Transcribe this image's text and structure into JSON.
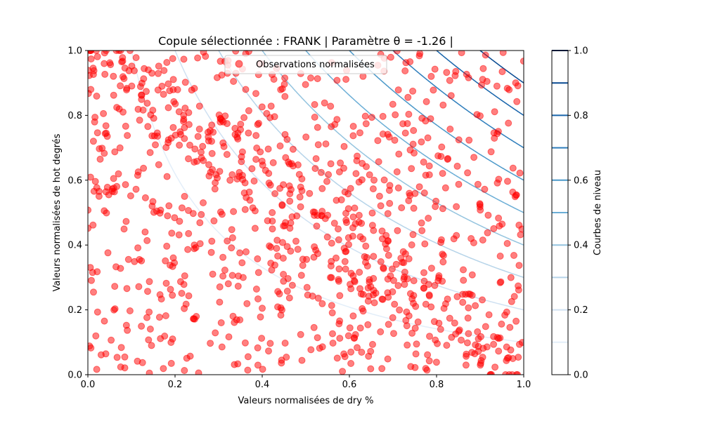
{
  "chart_data": {
    "type": "scatter",
    "title": "Copule sélectionnée : FRANK | Paramètre θ = -1.26 |",
    "xlabel": "Valeurs normalisées de dry %",
    "ylabel": "Valeurs normalisées de hot degrés",
    "xlim": [
      0,
      1
    ],
    "ylim": [
      0,
      1
    ],
    "x_ticks": [
      "0.0",
      "0.2",
      "0.4",
      "0.6",
      "0.8",
      "1.0"
    ],
    "y_ticks": [
      "0.0",
      "0.2",
      "0.4",
      "0.6",
      "0.8",
      "1.0"
    ],
    "grid": false,
    "copula": "FRANK",
    "theta": -1.26,
    "series": [
      {
        "name": "Observations normalisées",
        "color": "#ff0000",
        "n_points": 1000,
        "distribution": "uniform marginals, weak negative dependence"
      }
    ],
    "contour_levels": [
      0.1,
      0.2,
      0.3,
      0.4,
      0.5,
      0.6,
      0.7,
      0.8,
      0.9
    ],
    "contour_colormap": "Blues",
    "legend_position": "top-center",
    "colorbar": {
      "label": "Courbes de niveau",
      "ticks": [
        "0.0",
        "0.2",
        "0.4",
        "0.6",
        "0.8",
        "1.0"
      ],
      "range": [
        0,
        1
      ]
    }
  }
}
